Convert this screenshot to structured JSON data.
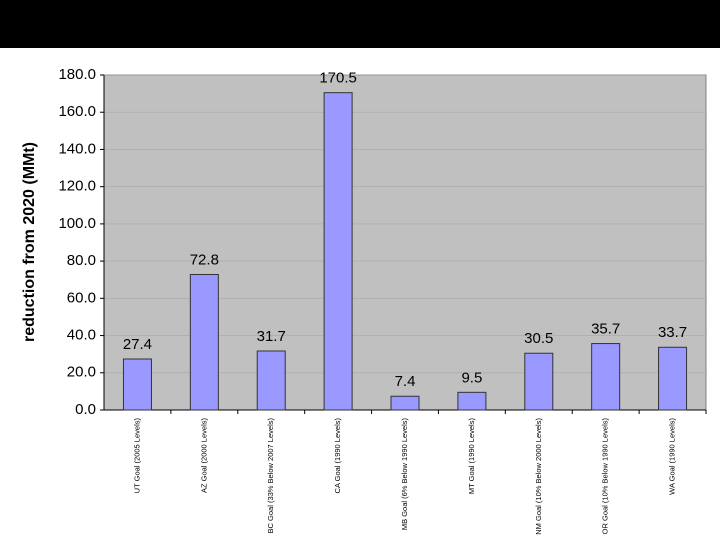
{
  "chart_data": {
    "type": "bar",
    "y_label": "reduction from 2020 (MMt)",
    "categories": [
      "UT Goal (2005 Levels)",
      "AZ Goal (2000 Levels)",
      "BC Goal (33% Below 2007 Levels)",
      "CA Goal (1990 Levels)",
      "MB Goal (6% Below 1990 Levels)",
      "MT Goal (1990 Levels)",
      "NM Goal (10% Below 2000 Levels)",
      "OR Goal (10% Below 1990 Levels)",
      "WA Goal (1990 Levels)"
    ],
    "values": [
      27.4,
      72.8,
      31.7,
      170.5,
      7.4,
      9.5,
      30.5,
      35.7,
      33.7
    ],
    "color": "#9999ff",
    "ylim": [
      0,
      180
    ],
    "yticks": [
      {
        "value": 0,
        "label": "0.0"
      },
      {
        "value": 20,
        "label": "20.0"
      },
      {
        "value": 40,
        "label": "40.0"
      },
      {
        "value": 60,
        "label": "60.0"
      },
      {
        "value": 80,
        "label": "80.0"
      },
      {
        "value": 100,
        "label": "100.0"
      },
      {
        "value": 120,
        "label": "120.0"
      },
      {
        "value": 140,
        "label": "140.0"
      },
      {
        "value": 160,
        "label": "160.0"
      },
      {
        "value": 180,
        "label": "180.0"
      }
    ],
    "grid": true
  }
}
